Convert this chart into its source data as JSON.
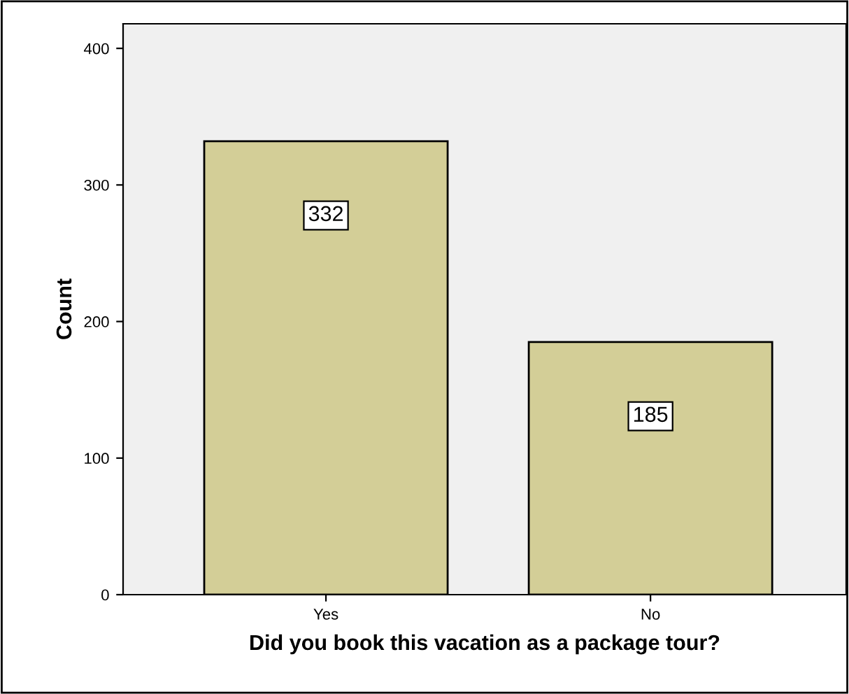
{
  "chart_data": {
    "type": "bar",
    "xlabel": "Did you book this vacation as a package tour?",
    "ylabel": "Count",
    "categories": [
      "Yes",
      "No"
    ],
    "values": [
      332,
      185
    ],
    "color": "#d3ce97",
    "ylim": [
      0,
      418
    ],
    "yticks": [
      0,
      100,
      200,
      300,
      400
    ],
    "grid": false,
    "data_labels": true,
    "legend": false
  }
}
